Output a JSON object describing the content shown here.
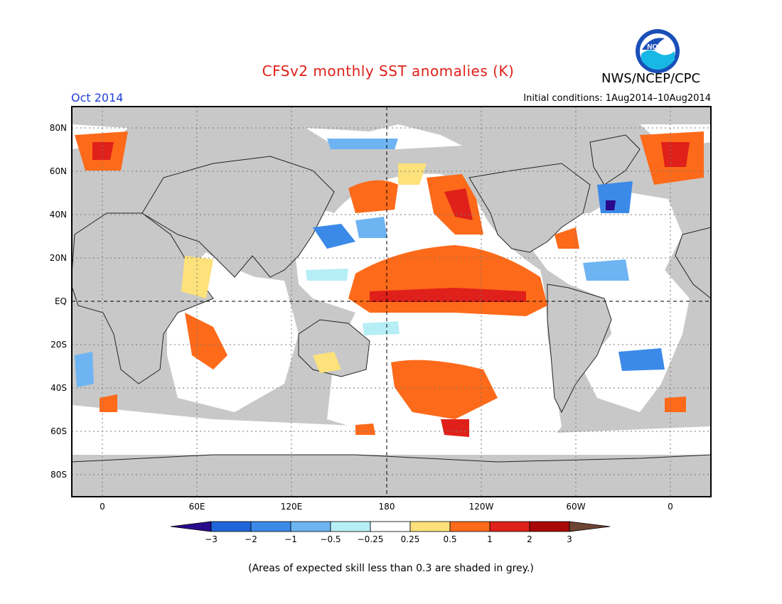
{
  "header": {
    "title": "CFSv2 monthly SST anomalies (K)",
    "organization": "NWS/NCEP/CPC",
    "logo_text": "NOAA",
    "valid_month": "Oct 2014",
    "initial_conditions": "Initial conditions: 1Aug2014–10Aug2014"
  },
  "map": {
    "lat_labels": [
      "80N",
      "60N",
      "40N",
      "20N",
      "EQ",
      "20S",
      "40S",
      "60S",
      "80S"
    ],
    "lon_labels": [
      "0",
      "60E",
      "120E",
      "180",
      "120W",
      "60W",
      "0"
    ],
    "land_color": "#c8c8c8",
    "ocean_color": "#ffffff"
  },
  "colorbar": {
    "ticks": [
      "−3",
      "−2",
      "−1",
      "−0.5",
      "−0.25",
      "0.25",
      "0.5",
      "1",
      "2",
      "3"
    ],
    "colors": [
      "#2a0a8c",
      "#2166d8",
      "#3b8ae8",
      "#6eb4f2",
      "#b6eef5",
      "#ffffff",
      "#fde17a",
      "#fd6a1a",
      "#e0201a",
      "#a80808",
      "#6e4432"
    ]
  },
  "footnote": "(Areas of expected skill less than 0.3 are shaded in grey.)"
}
